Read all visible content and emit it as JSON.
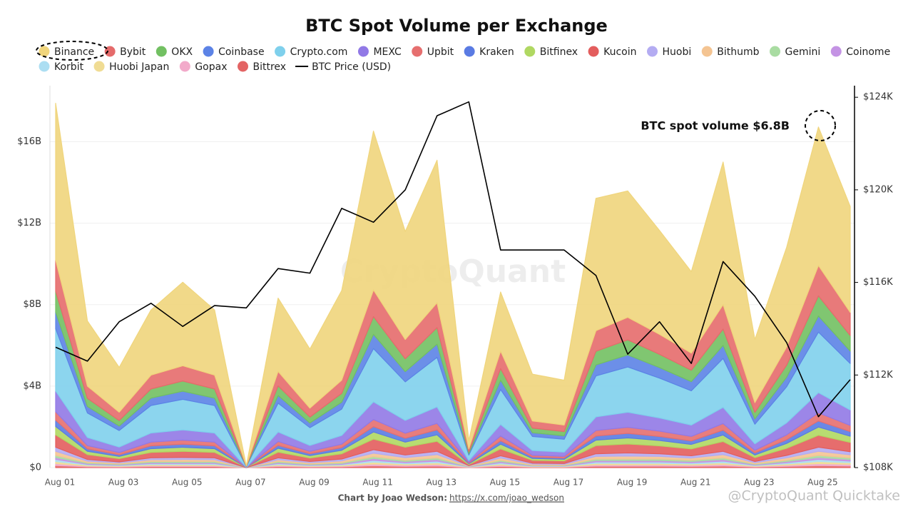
{
  "chart_data": {
    "type": "area",
    "title": "BTC Spot Volume per Exchange",
    "annotation": "BTC spot volume $6.8B",
    "source": "Chart by Joao Wedson:",
    "source_link": "https://x.com/joao_wedson",
    "watermark": "CryptoQuant",
    "watermark_2": "@CryptoQuant Quicktake",
    "grid": true,
    "stacked": true,
    "categories": [
      "Aug 01",
      null,
      "Aug 03",
      null,
      "Aug 05",
      null,
      "Aug 07",
      null,
      "Aug 09",
      null,
      "Aug 11",
      null,
      "Aug 13",
      null,
      "Aug 15",
      null,
      "Aug 17",
      null,
      "Aug 19",
      null,
      "Aug 21",
      null,
      "Aug 23",
      null,
      "Aug 25",
      null
    ],
    "ylim": [
      0,
      18.75
    ],
    "yticks": [
      {
        "value": 0,
        "label": "$0"
      },
      {
        "value": 4,
        "label": "$4B"
      },
      {
        "value": 8,
        "label": "$8B"
      },
      {
        "value": 12,
        "label": "$12B"
      },
      {
        "value": 16,
        "label": "$16B"
      }
    ],
    "y2lim": [
      108,
      124.5
    ],
    "y2ticks": [
      {
        "value": 108,
        "label": "$108K"
      },
      {
        "value": 112,
        "label": "$112K"
      },
      {
        "value": 116,
        "label": "$116K"
      },
      {
        "value": 120,
        "label": "$120K"
      },
      {
        "value": 124,
        "label": "$124K"
      }
    ],
    "series": [
      {
        "name": "Binance",
        "color": "#f0d57c",
        "values": [
          7.7,
          3.2,
          2.2,
          3.2,
          4.1,
          3.2,
          0,
          3.6,
          2.9,
          4.4,
          7.8,
          5.3,
          7.0,
          0.4,
          2.9,
          2.3,
          2.2,
          6.5,
          6.2,
          5.1,
          4.0,
          7.0,
          3.1,
          4.9,
          6.8,
          5.2
        ]
      },
      {
        "name": "Bybit",
        "color": "#e56b6b",
        "values": [
          1.53,
          0.6,
          0.41,
          0.68,
          0.75,
          0.68,
          0.02,
          0.71,
          0.44,
          0.65,
          1.31,
          0.95,
          1.22,
          0.14,
          0.86,
          0.35,
          0.32,
          1.01,
          1.11,
          0.98,
          0.84,
          1.2,
          0.48,
          0.89,
          1.49,
          1.14
        ]
      },
      {
        "name": "OKX",
        "color": "#72c062",
        "values": [
          1.02,
          0.4,
          0.27,
          0.45,
          0.5,
          0.45,
          0.01,
          0.47,
          0.29,
          0.43,
          0.87,
          0.63,
          0.81,
          0.09,
          0.57,
          0.23,
          0.21,
          0.67,
          0.74,
          0.65,
          0.56,
          0.8,
          0.32,
          0.59,
          0.99,
          0.76
        ]
      },
      {
        "name": "Coinbase",
        "color": "#5c83e6",
        "values": [
          0.82,
          0.32,
          0.22,
          0.36,
          0.4,
          0.36,
          0.01,
          0.38,
          0.23,
          0.34,
          0.7,
          0.5,
          0.65,
          0.07,
          0.46,
          0.18,
          0.17,
          0.54,
          0.59,
          0.52,
          0.45,
          0.64,
          0.26,
          0.47,
          0.79,
          0.61
        ]
      },
      {
        "name": "Crypto.com",
        "color": "#7fd0ec",
        "values": [
          3.06,
          1.2,
          0.81,
          1.35,
          1.5,
          1.35,
          0.03,
          1.41,
          0.87,
          1.29,
          2.61,
          1.89,
          2.43,
          0.27,
          1.71,
          0.69,
          0.63,
          2.01,
          2.22,
          1.95,
          1.68,
          2.4,
          0.96,
          1.77,
          2.97,
          2.28
        ]
      },
      {
        "name": "MEXC",
        "color": "#9179e6",
        "values": [
          1.02,
          0.4,
          0.27,
          0.45,
          0.5,
          0.45,
          0.01,
          0.47,
          0.29,
          0.43,
          0.87,
          0.63,
          0.81,
          0.09,
          0.57,
          0.23,
          0.21,
          0.67,
          0.74,
          0.65,
          0.56,
          0.8,
          0.32,
          0.59,
          0.99,
          0.76
        ]
      },
      {
        "name": "Upbit",
        "color": "#e66f6f",
        "values": [
          0.41,
          0.16,
          0.11,
          0.18,
          0.2,
          0.18,
          0,
          0.19,
          0.12,
          0.17,
          0.35,
          0.25,
          0.32,
          0.04,
          0.23,
          0.09,
          0.08,
          0.27,
          0.3,
          0.26,
          0.22,
          0.32,
          0.13,
          0.24,
          0.4,
          0.3
        ]
      },
      {
        "name": "Kraken",
        "color": "#5a7be3",
        "values": [
          0.31,
          0.12,
          0.08,
          0.14,
          0.15,
          0.14,
          0,
          0.14,
          0.09,
          0.13,
          0.26,
          0.19,
          0.24,
          0.03,
          0.17,
          0.07,
          0.06,
          0.2,
          0.22,
          0.2,
          0.17,
          0.24,
          0.1,
          0.18,
          0.3,
          0.23
        ]
      },
      {
        "name": "Bitfinex",
        "color": "#b0d862",
        "values": [
          0.41,
          0.16,
          0.11,
          0.18,
          0.2,
          0.18,
          0,
          0.19,
          0.12,
          0.17,
          0.35,
          0.25,
          0.32,
          0.04,
          0.23,
          0.09,
          0.08,
          0.27,
          0.3,
          0.26,
          0.22,
          0.32,
          0.13,
          0.24,
          0.4,
          0.3
        ]
      },
      {
        "name": "Kucoin",
        "color": "#e35d5d",
        "values": [
          0.61,
          0.24,
          0.16,
          0.27,
          0.3,
          0.27,
          0.01,
          0.28,
          0.17,
          0.26,
          0.52,
          0.38,
          0.49,
          0.05,
          0.34,
          0.14,
          0.13,
          0.4,
          0.44,
          0.39,
          0.34,
          0.48,
          0.19,
          0.35,
          0.59,
          0.46
        ]
      },
      {
        "name": "Huobi",
        "color": "#b4acf2",
        "values": [
          0.2,
          0.08,
          0.05,
          0.09,
          0.1,
          0.09,
          0,
          0.09,
          0.06,
          0.09,
          0.17,
          0.13,
          0.16,
          0.02,
          0.11,
          0.05,
          0.04,
          0.13,
          0.15,
          0.13,
          0.11,
          0.16,
          0.06,
          0.12,
          0.2,
          0.15
        ]
      },
      {
        "name": "Bithumb",
        "color": "#f4c492",
        "values": [
          0.2,
          0.08,
          0.05,
          0.09,
          0.1,
          0.09,
          0,
          0.09,
          0.06,
          0.09,
          0.17,
          0.13,
          0.16,
          0.02,
          0.11,
          0.05,
          0.04,
          0.13,
          0.15,
          0.13,
          0.11,
          0.16,
          0.06,
          0.12,
          0.2,
          0.15
        ]
      },
      {
        "name": "Gemini",
        "color": "#a9dca2",
        "values": [
          0.1,
          0.04,
          0.03,
          0.05,
          0.05,
          0.05,
          0,
          0.05,
          0.03,
          0.04,
          0.09,
          0.06,
          0.08,
          0.01,
          0.06,
          0.02,
          0.02,
          0.07,
          0.07,
          0.07,
          0.06,
          0.08,
          0.03,
          0.06,
          0.1,
          0.08
        ]
      },
      {
        "name": "Coinome",
        "color": "#c493e4",
        "values": [
          0.1,
          0.04,
          0.03,
          0.05,
          0.05,
          0.05,
          0,
          0.05,
          0.03,
          0.04,
          0.09,
          0.06,
          0.08,
          0.01,
          0.06,
          0.02,
          0.02,
          0.07,
          0.07,
          0.07,
          0.06,
          0.08,
          0.03,
          0.06,
          0.1,
          0.08
        ]
      },
      {
        "name": "Korbit",
        "color": "#acdef2",
        "values": [
          0.1,
          0.04,
          0.03,
          0.05,
          0.05,
          0.05,
          0,
          0.05,
          0.03,
          0.04,
          0.09,
          0.06,
          0.08,
          0.01,
          0.06,
          0.02,
          0.02,
          0.07,
          0.07,
          0.07,
          0.06,
          0.08,
          0.03,
          0.06,
          0.1,
          0.08
        ]
      },
      {
        "name": "Huobi Japan",
        "color": "#f0dc94",
        "values": [
          0.1,
          0.04,
          0.03,
          0.05,
          0.05,
          0.05,
          0,
          0.05,
          0.03,
          0.04,
          0.09,
          0.06,
          0.08,
          0.01,
          0.06,
          0.02,
          0.02,
          0.07,
          0.07,
          0.07,
          0.06,
          0.08,
          0.03,
          0.06,
          0.1,
          0.08
        ]
      },
      {
        "name": "Gopax",
        "color": "#f2aaca",
        "values": [
          0.1,
          0.04,
          0.03,
          0.05,
          0.05,
          0.05,
          0,
          0.05,
          0.03,
          0.04,
          0.09,
          0.06,
          0.08,
          0.01,
          0.06,
          0.02,
          0.02,
          0.07,
          0.07,
          0.07,
          0.06,
          0.08,
          0.03,
          0.06,
          0.1,
          0.08
        ]
      },
      {
        "name": "Bittrex",
        "color": "#e36464",
        "values": [
          0.1,
          0.04,
          0.03,
          0.05,
          0.05,
          0.05,
          0,
          0.05,
          0.03,
          0.04,
          0.09,
          0.06,
          0.08,
          0.01,
          0.06,
          0.02,
          0.02,
          0.07,
          0.07,
          0.07,
          0.06,
          0.08,
          0.03,
          0.06,
          0.1,
          0.08
        ]
      },
      {
        "name": "BTC Price (USD)",
        "color": "#000000",
        "axis": "y2",
        "values": [
          113.2,
          112.6,
          114.3,
          115.1,
          114.1,
          115.0,
          114.9,
          116.6,
          116.4,
          119.2,
          118.6,
          120.0,
          123.2,
          123.8,
          117.4,
          117.4,
          117.4,
          116.3,
          112.9,
          114.3,
          112.5,
          116.9,
          115.4,
          113.4,
          110.2,
          111.8
        ]
      }
    ]
  }
}
